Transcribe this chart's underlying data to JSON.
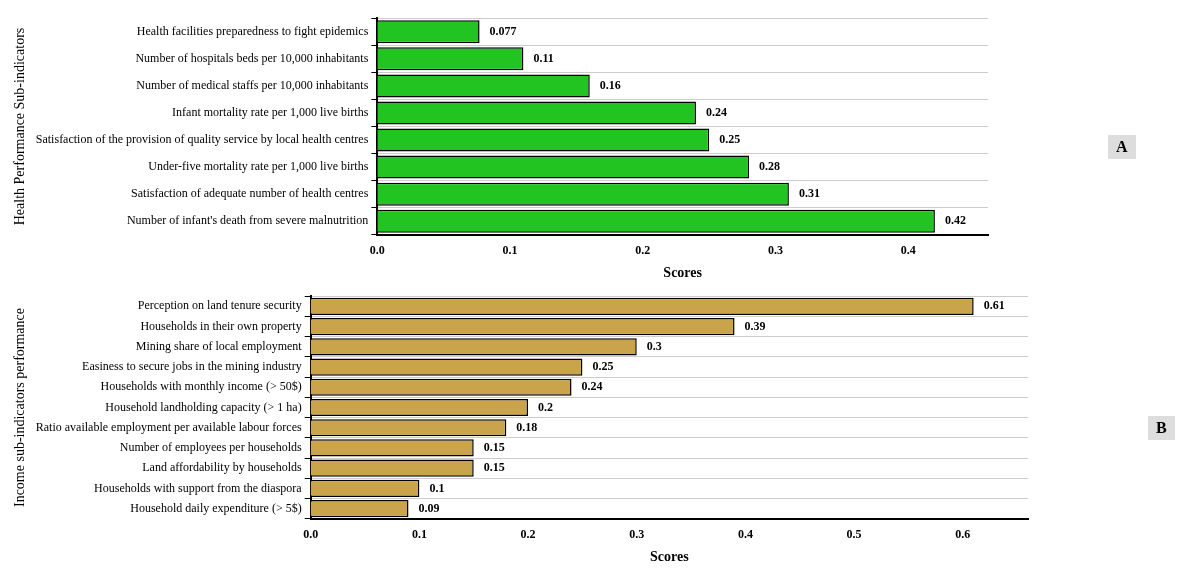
{
  "chart_data": [
    {
      "type": "bar",
      "orientation": "horizontal",
      "ylabel": "Health Performance Sub-indicators",
      "xlabel": "Scores",
      "categories": [
        "Health facilities preparedness to fight epidemics",
        "Number of hospitals beds per 10,000 inhabitants",
        "Number of medical staffs per 10,000 inhabitants",
        "Infant mortality rate per 1,000 live births",
        "Satisfaction of the provision of quality service by local health centres",
        "Under-five mortality rate per 1,000 live births",
        "Satisfaction of adequate number of health centres",
        "Number of infant's death from severe malnutrition"
      ],
      "values": [
        0.077,
        0.11,
        0.16,
        0.24,
        0.25,
        0.28,
        0.31,
        0.42
      ],
      "color": "#22c422",
      "xlim": [
        0,
        0.46
      ],
      "xticks": [
        {
          "value": 0,
          "label": "0.0"
        },
        0.1,
        0.2,
        0.3,
        0.4
      ],
      "grid": "y",
      "data_labels": true,
      "annotations": [
        "A"
      ]
    },
    {
      "type": "bar",
      "orientation": "horizontal",
      "ylabel": "Income sub-indicators performance",
      "xlabel": "Scores",
      "categories": [
        "Perception on land tenure security",
        "Households in their own property",
        "Mining share of local employment",
        "Easiness to secure jobs in the mining industry",
        "Households with monthly income (> 50$)",
        "Household landholding capacity (> 1 ha)",
        "Ratio available employment per available labour forces",
        "Number of employees per households",
        "Land affordability by households",
        "Households with support from the diaspora",
        "Household daily expenditure (> 5$)"
      ],
      "values": [
        0.61,
        0.39,
        0.3,
        0.25,
        0.24,
        0.2,
        0.18,
        0.15,
        0.15,
        0.1,
        0.09
      ],
      "color": "#c9a44a",
      "xlim": [
        0,
        0.66
      ],
      "xticks": [
        {
          "value": 0,
          "label": "0.0"
        },
        0.1,
        0.2,
        0.3,
        0.4,
        0.5,
        0.6
      ],
      "grid": "y",
      "data_labels": true,
      "annotations": [
        "B"
      ]
    }
  ]
}
